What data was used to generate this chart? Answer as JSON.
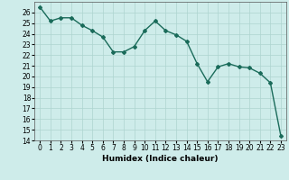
{
  "x": [
    0,
    1,
    2,
    3,
    4,
    5,
    6,
    7,
    8,
    9,
    10,
    11,
    12,
    13,
    14,
    15,
    16,
    17,
    18,
    19,
    20,
    21,
    22,
    23
  ],
  "y": [
    26.5,
    25.2,
    25.5,
    25.5,
    24.8,
    24.3,
    23.7,
    22.3,
    22.3,
    22.8,
    24.3,
    25.2,
    24.3,
    23.9,
    23.3,
    21.2,
    19.5,
    20.9,
    21.2,
    20.9,
    20.8,
    20.3,
    19.4,
    14.4
  ],
  "xlabel": "Humidex (Indice chaleur)",
  "xlim": [
    -0.5,
    23.5
  ],
  "ylim": [
    14,
    27
  ],
  "yticks": [
    14,
    15,
    16,
    17,
    18,
    19,
    20,
    21,
    22,
    23,
    24,
    25,
    26
  ],
  "xticks": [
    0,
    1,
    2,
    3,
    4,
    5,
    6,
    7,
    8,
    9,
    10,
    11,
    12,
    13,
    14,
    15,
    16,
    17,
    18,
    19,
    20,
    21,
    22,
    23
  ],
  "line_color": "#1a6b5a",
  "marker": "D",
  "marker_size": 2.0,
  "line_width": 1.0,
  "bg_color": "#ceecea",
  "grid_color": "#aed4d0",
  "label_fontsize": 6.5,
  "tick_fontsize": 5.5
}
